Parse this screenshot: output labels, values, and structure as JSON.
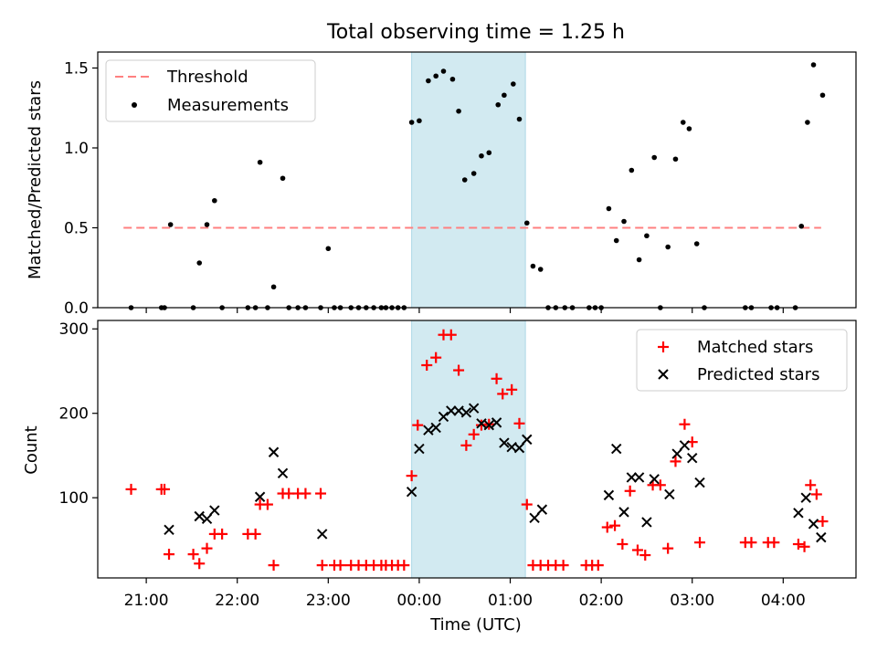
{
  "chart_data": [
    {
      "type": "scatter",
      "title": "Total observing time = 1.25 h",
      "ylabel": "Matched/Predicted stars",
      "xlim": [
        "20:28",
        "04:48"
      ],
      "ylim": [
        0,
        1.6
      ],
      "yticks": [
        "0.0",
        "0.5",
        "1.0",
        "1.5"
      ],
      "shaded_span": [
        "23:55",
        "01:10"
      ],
      "shade_color": "#add8e6",
      "threshold": {
        "name": "Threshold",
        "value": 0.5,
        "x_range": [
          "20:45",
          "04:25"
        ],
        "color": "#ff8080"
      },
      "legend_position": "top-left",
      "series": [
        {
          "name": "Measurements",
          "color": "#000000",
          "x": [
            "20:50",
            "21:10",
            "21:12",
            "21:16",
            "21:31",
            "21:35",
            "21:40",
            "21:45",
            "21:50",
            "22:07",
            "22:12",
            "22:15",
            "22:20",
            "22:24",
            "22:30",
            "22:34",
            "22:40",
            "22:45",
            "22:55",
            "23:00",
            "23:04",
            "23:08",
            "23:15",
            "23:20",
            "23:25",
            "23:30",
            "23:35",
            "23:38",
            "23:42",
            "23:46",
            "23:50",
            "23:55",
            "24:00",
            "24:06",
            "24:11",
            "24:16",
            "24:22",
            "24:26",
            "24:30",
            "24:36",
            "24:41",
            "24:46",
            "24:52",
            "24:56",
            "25:02",
            "25:06",
            "25:11",
            "25:15",
            "25:20",
            "25:25",
            "25:30",
            "25:36",
            "25:41",
            "25:52",
            "25:56",
            "26:00",
            "26:05",
            "26:10",
            "26:15",
            "26:20",
            "26:25",
            "26:30",
            "26:35",
            "26:39",
            "26:44",
            "26:49",
            "26:54",
            "26:58",
            "27:03",
            "27:08",
            "27:35",
            "27:39",
            "27:52",
            "27:56",
            "28:08",
            "28:12",
            "28:16",
            "28:20",
            "28:26"
          ],
          "y": [
            0.0,
            0.0,
            0.0,
            0.52,
            0.0,
            0.28,
            0.52,
            0.67,
            0.0,
            0.0,
            0.0,
            0.91,
            0.0,
            0.13,
            0.81,
            0.0,
            0.0,
            0.0,
            0.0,
            0.37,
            0.0,
            0.0,
            0.0,
            0.0,
            0.0,
            0.0,
            0.0,
            0.0,
            0.0,
            0.0,
            0.0,
            1.16,
            1.17,
            1.42,
            1.45,
            1.48,
            1.43,
            1.23,
            0.8,
            0.84,
            0.95,
            0.97,
            1.27,
            1.33,
            1.4,
            1.18,
            0.53,
            0.26,
            0.24,
            0.0,
            0.0,
            0.0,
            0.0,
            0.0,
            0.0,
            0.0,
            0.62,
            0.42,
            0.54,
            0.86,
            0.3,
            0.45,
            0.94,
            0.0,
            0.38,
            0.93,
            1.16,
            1.12,
            0.4,
            0.0,
            0.0,
            0.0,
            0.0,
            0.0,
            0.0,
            0.51,
            1.16,
            1.52,
            1.33
          ]
        }
      ]
    },
    {
      "type": "scatter",
      "xlabel": "Time (UTC)",
      "ylabel": "Count",
      "xlim": [
        "20:28",
        "04:48"
      ],
      "ylim": [
        5,
        310
      ],
      "yticks": [
        "100",
        "200",
        "300"
      ],
      "xticks": [
        "21:00",
        "22:00",
        "23:00",
        "00:00",
        "01:00",
        "02:00",
        "03:00",
        "04:00"
      ],
      "shaded_span": [
        "23:55",
        "01:10"
      ],
      "shade_color": "#add8e6",
      "legend_position": "top-right",
      "series": [
        {
          "name": "Matched stars",
          "marker": "plus",
          "color": "#ff0000",
          "x": [
            "20:50",
            "21:10",
            "21:12",
            "21:15",
            "21:31",
            "21:35",
            "21:40",
            "21:45",
            "21:50",
            "22:07",
            "22:12",
            "22:15",
            "22:20",
            "22:24",
            "22:30",
            "22:34",
            "22:40",
            "22:45",
            "22:55",
            "22:56",
            "23:04",
            "23:08",
            "23:15",
            "23:20",
            "23:25",
            "23:30",
            "23:35",
            "23:38",
            "23:42",
            "23:46",
            "23:50",
            "23:55",
            "23:59",
            "24:05",
            "24:11",
            "24:16",
            "24:21",
            "24:26",
            "24:31",
            "24:36",
            "24:41",
            "24:46",
            "24:51",
            "24:55",
            "25:01",
            "25:06",
            "25:11",
            "25:15",
            "25:20",
            "25:25",
            "25:30",
            "25:35",
            "25:50",
            "25:54",
            "25:58",
            "26:04",
            "26:09",
            "26:14",
            "26:19",
            "26:24",
            "26:29",
            "26:34",
            "26:39",
            "26:44",
            "26:49",
            "26:55",
            "27:00",
            "27:05",
            "27:35",
            "27:39",
            "27:50",
            "27:54",
            "28:10",
            "28:14",
            "28:18",
            "28:22",
            "28:26"
          ],
          "y": [
            110,
            110,
            110,
            33,
            33,
            22,
            40,
            57,
            57,
            57,
            57,
            92,
            92,
            20,
            105,
            105,
            105,
            105,
            105,
            20,
            20,
            20,
            20,
            20,
            20,
            20,
            20,
            20,
            20,
            20,
            20,
            126,
            186,
            257,
            266,
            293,
            293,
            251,
            162,
            175,
            186,
            187,
            241,
            223,
            228,
            188,
            92,
            20,
            20,
            20,
            20,
            20,
            20,
            20,
            20,
            65,
            67,
            45,
            108,
            38,
            32,
            115,
            115,
            40,
            143,
            187,
            166,
            47,
            47,
            47,
            47,
            47,
            45,
            42,
            115,
            104,
            72
          ]
        },
        {
          "name": "Predicted stars",
          "marker": "x",
          "color": "#000000",
          "x": [
            "21:15",
            "21:35",
            "21:40",
            "21:45",
            "22:15",
            "22:24",
            "22:30",
            "22:56",
            "23:55",
            "24:00",
            "24:06",
            "24:11",
            "24:16",
            "24:21",
            "24:26",
            "24:31",
            "24:36",
            "24:41",
            "24:46",
            "24:51",
            "24:56",
            "25:01",
            "25:06",
            "25:11",
            "25:16",
            "25:21",
            "26:05",
            "26:10",
            "26:15",
            "26:20",
            "26:25",
            "26:30",
            "26:35",
            "26:45",
            "26:50",
            "26:55",
            "27:00",
            "27:05",
            "28:10",
            "28:15",
            "28:20",
            "28:25"
          ],
          "y": [
            62,
            78,
            75,
            85,
            101,
            154,
            129,
            57,
            107,
            158,
            180,
            183,
            196,
            203,
            203,
            201,
            206,
            188,
            186,
            189,
            165,
            160,
            159,
            169,
            76,
            86,
            103,
            158,
            83,
            124,
            124,
            71,
            122,
            104,
            152,
            162,
            147,
            118,
            82,
            100,
            69,
            53
          ]
        }
      ]
    }
  ]
}
